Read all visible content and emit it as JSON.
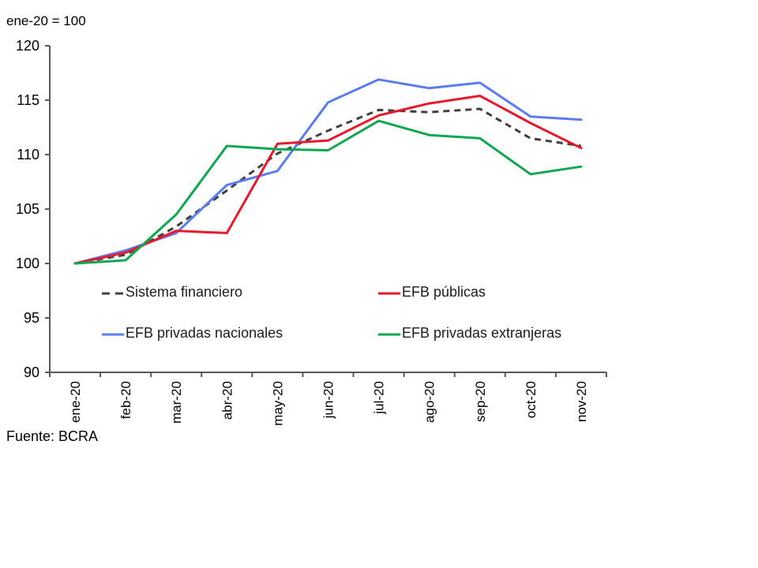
{
  "note": "ene-20 = 100",
  "source": "Fuente: BCRA",
  "chart_data": {
    "type": "line",
    "title": "",
    "xlabel": "",
    "ylabel": "",
    "categories": [
      "ene-20",
      "feb-20",
      "mar-20",
      "abr-20",
      "may-20",
      "jun-20",
      "jul-20",
      "ago-20",
      "sep-20",
      "oct-20",
      "nov-20"
    ],
    "series": [
      {
        "name": "Sistema financiero",
        "color": "#404040",
        "dashed": true,
        "values": [
          100,
          100.8,
          103.4,
          106.7,
          110.1,
          112.2,
          114.1,
          113.9,
          114.2,
          111.5,
          110.8
        ]
      },
      {
        "name": "EFB públicas",
        "color": "#e8192c",
        "dashed": false,
        "values": [
          100,
          101.0,
          103.0,
          102.8,
          111.0,
          111.3,
          113.6,
          114.7,
          115.4,
          112.9,
          110.6
        ]
      },
      {
        "name": "EFB privadas nacionales",
        "color": "#5b7cf0",
        "dashed": false,
        "values": [
          100,
          101.2,
          102.8,
          107.2,
          108.5,
          114.8,
          116.9,
          116.1,
          116.6,
          113.5,
          113.2
        ]
      },
      {
        "name": "EFB privadas extranjeras",
        "color": "#0da750",
        "dashed": false,
        "values": [
          100,
          100.3,
          104.5,
          110.8,
          110.5,
          110.4,
          113.1,
          111.8,
          111.5,
          108.2,
          108.9
        ]
      }
    ],
    "ylim": [
      90,
      120
    ],
    "ytick_step": 5,
    "yticks": [
      90,
      95,
      100,
      105,
      110,
      115,
      120
    ],
    "grid": false,
    "legend_position": "inside-bottom",
    "axis_color": "#595959",
    "tick_label_color": "#000000"
  }
}
